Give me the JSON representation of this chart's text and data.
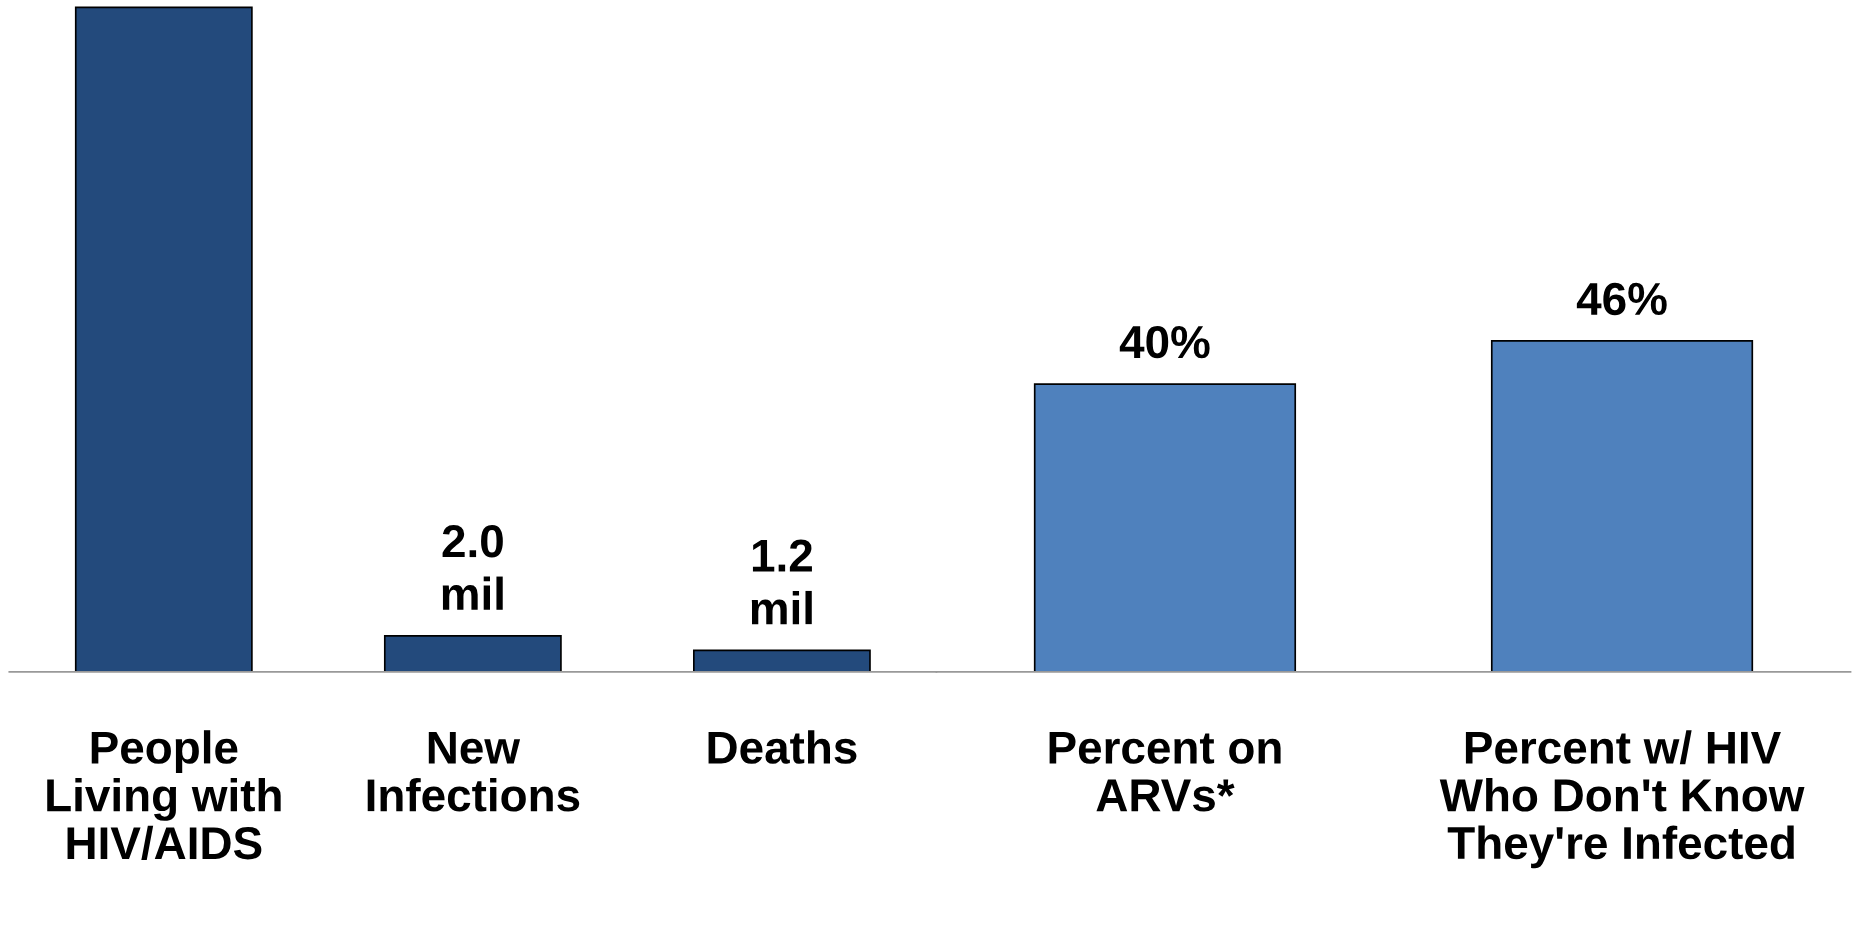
{
  "chart_data": [
    {
      "type": "bar",
      "categories": [
        "People\nLiving with\nHIV/AIDS",
        "New\nInfections",
        "Deaths"
      ],
      "values": [
        37,
        2.0,
        1.2
      ],
      "color": "#234a7c",
      "value_labels": [
        null,
        "2.0\nmil",
        "1.2\nmil"
      ]
    },
    {
      "type": "bar",
      "categories": [
        "Percent on\nARVs*",
        "Percent w/ HIV\nWho Don't Know\nThey're Infected"
      ],
      "values": [
        40,
        46
      ],
      "color": "#4f81bd",
      "value_labels": [
        "40%",
        "46%"
      ]
    }
  ]
}
